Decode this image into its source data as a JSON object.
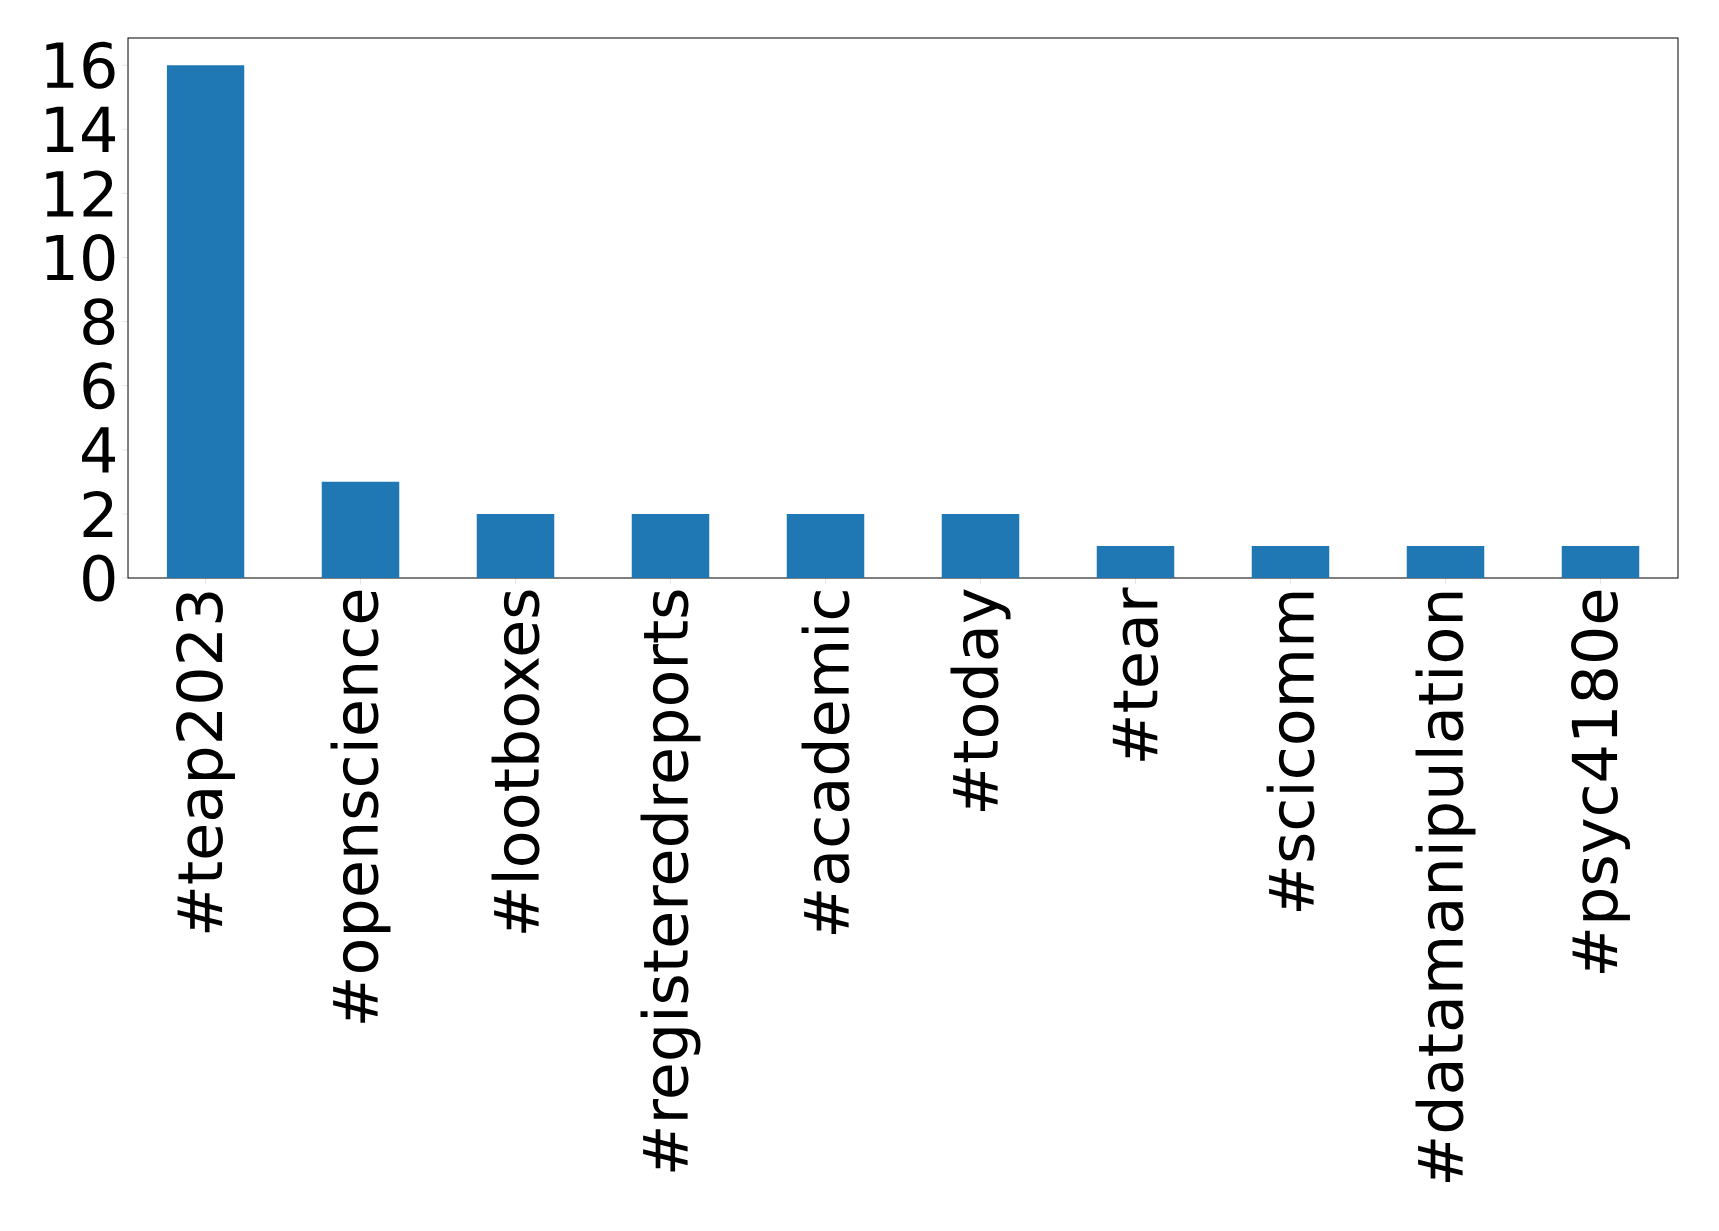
{
  "chart_data": {
    "type": "bar",
    "categories": [
      "#teap2023",
      "#openscience",
      "#lootboxes",
      "#registeredreports",
      "#academic",
      "#today",
      "#tear",
      "#scicomm",
      "#datamanipulation",
      "#psyc4180e"
    ],
    "values": [
      16,
      3,
      2,
      2,
      2,
      2,
      1,
      1,
      1,
      1
    ],
    "color": "#1f77b4",
    "ylim": [
      0,
      16.85
    ],
    "yticks": [
      0,
      2,
      4,
      6,
      8,
      10,
      12,
      14,
      16
    ],
    "grid": false
  }
}
